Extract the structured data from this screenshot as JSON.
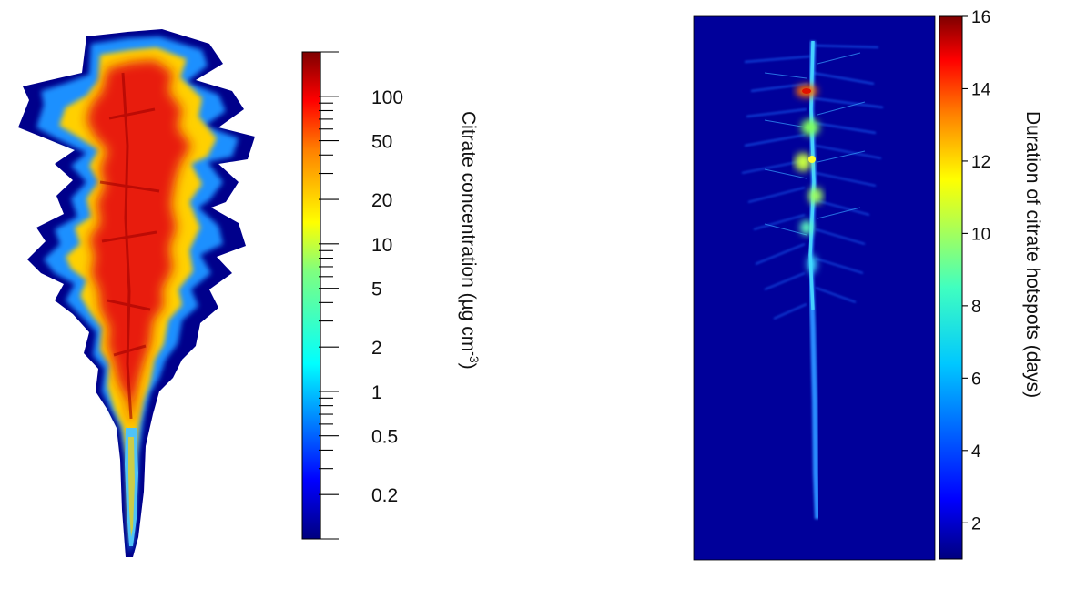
{
  "chart_data": [
    {
      "type": "heatmap",
      "subject": "root system",
      "colorscale": "jet",
      "scale": "log",
      "colorbar": {
        "label": "Citrate concentration (µg cm",
        "label_superscript": "-3",
        "label_suffix": ")",
        "ticks": [
          "100",
          "50",
          "20",
          "10",
          "5",
          "2",
          "1",
          "0.5",
          "0.2"
        ],
        "tick_values": [
          100,
          50,
          20,
          10,
          5,
          2,
          1,
          0.5,
          0.2
        ],
        "range": [
          0.1,
          200
        ]
      }
    },
    {
      "type": "heatmap",
      "subject": "root system",
      "colorscale": "jet",
      "scale": "linear",
      "colorbar": {
        "label": "Duration of citrate hotspots (days)",
        "ticks": [
          "16",
          "14",
          "12",
          "10",
          "8",
          "6",
          "4",
          "2"
        ],
        "tick_values": [
          16,
          14,
          12,
          10,
          8,
          6,
          4,
          2
        ],
        "range": [
          1,
          16
        ]
      }
    }
  ],
  "colors": {
    "jet_stops": [
      "#00007f",
      "#0000ff",
      "#007fff",
      "#00ffff",
      "#7fff7f",
      "#ffff00",
      "#ff7f00",
      "#ff0000",
      "#7f0000"
    ],
    "background_dark": "#00008b"
  }
}
